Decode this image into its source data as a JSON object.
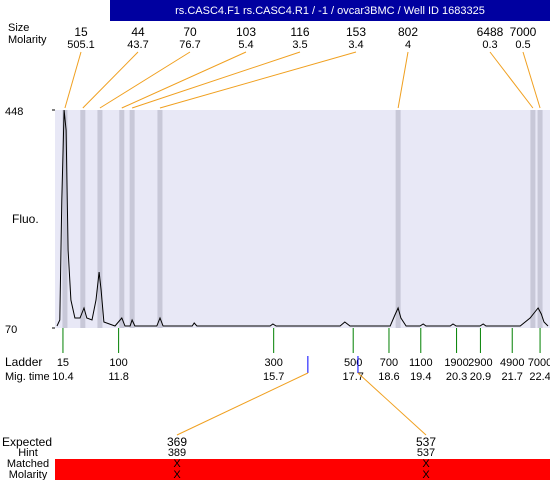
{
  "header": "rs.CASC4.F1  rs.CASC4.R1  / -1  / ovcar3BMC  / Well ID 1683325",
  "row_labels": {
    "size": "Size",
    "molarity": "Molarity",
    "fluo": "Fluo.",
    "ladder": "Ladder",
    "mig_time": "Mig. time",
    "expected": "Expected",
    "hint": "Hint",
    "matched": "Matched",
    "molarity2": "Molarity"
  },
  "plot": {
    "xlim": [
      10.2,
      22.65
    ],
    "ylim": [
      70,
      448
    ],
    "yticks": [
      70,
      448
    ]
  },
  "peaks": [
    {
      "size": 15,
      "molarity": 505.1,
      "time": 10.45
    },
    {
      "size": 44,
      "molarity": 43.7,
      "time": 10.9
    },
    {
      "size": 70,
      "molarity": 76.7,
      "time": 11.33
    },
    {
      "size": 103,
      "molarity": 5.4,
      "time": 11.88
    },
    {
      "size": 116,
      "molarity": 3.5,
      "time": 12.14
    },
    {
      "size": 153,
      "molarity": 3.4,
      "time": 12.84
    },
    {
      "size": 802,
      "molarity": 4,
      "time": 18.83
    },
    {
      "size": 6488,
      "molarity": 0.3,
      "time": 22.22
    },
    {
      "size": 7000,
      "molarity": 0.5,
      "time": 22.4
    }
  ],
  "trace": {
    "time": [
      10.25,
      10.32,
      10.37,
      10.43,
      10.48,
      10.53,
      10.6,
      10.7,
      10.83,
      10.93,
      11.0,
      11.13,
      11.23,
      11.31,
      11.36,
      11.43,
      11.71,
      11.88,
      11.96,
      12.09,
      12.14,
      12.21,
      12.76,
      12.84,
      12.92,
      13.65,
      13.7,
      13.77,
      15.61,
      15.68,
      15.76,
      17.37,
      17.49,
      17.62,
      18.63,
      18.75,
      18.83,
      18.9,
      19.03,
      19.38,
      19.46,
      19.53,
      20.14,
      20.21,
      20.29,
      20.89,
      20.97,
      21.04,
      21.9,
      22.15,
      22.27,
      22.35,
      22.43,
      22.5,
      22.6
    ],
    "fluo": [
      73.5,
      83.9,
      292,
      448,
      413,
      205,
      118.6,
      87.3,
      87.3,
      104.7,
      87.3,
      83.9,
      118.6,
      167,
      136,
      80.4,
      73.5,
      87.3,
      73.5,
      73.5,
      83.9,
      73.5,
      73.5,
      87.3,
      73.5,
      73.5,
      78.7,
      73.5,
      73.5,
      76.9,
      73.5,
      73.5,
      80.4,
      73.5,
      73.5,
      92.5,
      104.7,
      87.3,
      73.5,
      73.5,
      76.9,
      73.5,
      73.5,
      76.9,
      73.5,
      73.5,
      76.9,
      73.5,
      73.5,
      87.3,
      97.7,
      104.7,
      94.3,
      80.4,
      73.5
    ]
  },
  "ladder": [
    {
      "size": 15,
      "time": 10.4
    },
    {
      "size": 100,
      "time": 11.8
    },
    {
      "size": 300,
      "time": 15.7
    },
    {
      "size": 500,
      "time": 17.7
    },
    {
      "size": 700,
      "time": 18.6
    },
    {
      "size": 1100,
      "time": 19.4
    },
    {
      "size": 1900,
      "time": 20.3
    },
    {
      "size": 2900,
      "time": 20.9
    },
    {
      "size": 4900,
      "time": 21.7
    },
    {
      "size": 7000,
      "time": 22.4
    }
  ],
  "expected": [
    {
      "size": 369,
      "hint": 389,
      "matched": "X",
      "molarity": "X",
      "time": 16.56
    },
    {
      "size": 537,
      "hint": 537,
      "matched": "X",
      "molarity": "X",
      "time": 17.82
    }
  ]
}
